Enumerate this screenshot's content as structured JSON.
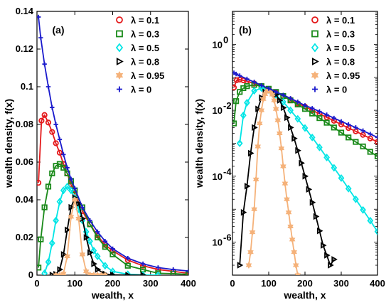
{
  "chart_data": [
    {
      "type": "line",
      "panel_label": "(a)",
      "xlabel": "wealth, x",
      "ylabel": "wealth density, f(x)",
      "xlim": [
        0,
        400
      ],
      "ylim": [
        0,
        0.14
      ],
      "yscale": "linear",
      "xticks": [
        "0",
        "100",
        "200",
        "300",
        "400"
      ],
      "yticks": [
        "0",
        "0.02",
        "0.04",
        "0.06",
        "0.08",
        "0.1",
        "0.12",
        "0.14"
      ],
      "legend_position": "top-right",
      "series": [
        {
          "name": "λ = 0.1",
          "color": "#e41a1c",
          "marker": "circle",
          "x": [
            4,
            12,
            20,
            30,
            40,
            50,
            60,
            70,
            80,
            90,
            100,
            120,
            140,
            160,
            180,
            200,
            240,
            280,
            320,
            360,
            400
          ],
          "y": [
            0.049,
            0.082,
            0.085,
            0.081,
            0.076,
            0.07,
            0.065,
            0.059,
            0.054,
            0.048,
            0.043,
            0.034,
            0.027,
            0.021,
            0.016,
            0.013,
            0.008,
            0.005,
            0.003,
            0.002,
            0.001
          ]
        },
        {
          "name": "λ = 0.3",
          "color": "#1a8a1a",
          "marker": "square",
          "x": [
            4,
            10,
            20,
            30,
            40,
            50,
            60,
            70,
            80,
            90,
            100,
            120,
            140,
            160,
            180,
            200,
            240,
            280,
            320,
            360,
            400
          ],
          "y": [
            0.004,
            0.019,
            0.036,
            0.047,
            0.054,
            0.058,
            0.059,
            0.057,
            0.054,
            0.05,
            0.045,
            0.036,
            0.027,
            0.02,
            0.015,
            0.011,
            0.005,
            0.003,
            0.001,
            0.0008,
            0.0004
          ]
        },
        {
          "name": "λ = 0.5",
          "color": "#00e5e5",
          "marker": "diamond",
          "x": [
            20,
            30,
            40,
            50,
            60,
            70,
            80,
            90,
            100,
            110,
            120,
            130,
            140,
            150,
            160,
            180,
            200,
            240,
            280,
            320
          ],
          "y": [
            0.001,
            0.007,
            0.017,
            0.029,
            0.039,
            0.045,
            0.047,
            0.045,
            0.041,
            0.035,
            0.029,
            0.023,
            0.018,
            0.013,
            0.01,
            0.005,
            0.002,
            0.0005,
            0.0001,
            2e-05
          ]
        },
        {
          "name": "λ = 0.8",
          "color": "#000000",
          "marker": "triangle-right",
          "x": [
            40,
            50,
            60,
            70,
            80,
            90,
            100,
            110,
            120,
            130,
            140,
            150,
            160,
            180,
            200,
            240,
            280
          ],
          "y": [
            5e-05,
            0.0005,
            0.003,
            0.011,
            0.024,
            0.036,
            0.041,
            0.038,
            0.03,
            0.02,
            0.012,
            0.006,
            0.003,
            0.0006,
            0.0001,
            1e-05,
            1e-06
          ]
        },
        {
          "name": "λ = 0.95",
          "color": "#f5b27a",
          "marker": "hexagram",
          "x": [
            50,
            60,
            70,
            80,
            90,
            100,
            110,
            120,
            130,
            140,
            150,
            160,
            170,
            180
          ],
          "y": [
            5e-07,
            1e-05,
            0.0008,
            0.01,
            0.031,
            0.04,
            0.03,
            0.011,
            0.002,
            0.0002,
            2e-05,
            3e-06,
            5e-07,
            1e-07
          ]
        },
        {
          "name": "λ = 0",
          "color": "#1a1acc",
          "marker": "plus",
          "x": [
            4,
            10,
            20,
            30,
            40,
            50,
            60,
            70,
            80,
            90,
            100,
            120,
            140,
            160,
            180,
            200,
            240,
            280,
            320,
            360,
            400
          ],
          "y": [
            0.137,
            0.126,
            0.112,
            0.1,
            0.089,
            0.08,
            0.072,
            0.064,
            0.057,
            0.051,
            0.046,
            0.036,
            0.029,
            0.023,
            0.018,
            0.014,
            0.009,
            0.006,
            0.004,
            0.003,
            0.0022
          ]
        }
      ]
    },
    {
      "type": "line",
      "panel_label": "(b)",
      "xlabel": "wealth, x",
      "ylabel": "wealth density, f(x)",
      "xlim": [
        0,
        400
      ],
      "ylim": [
        1e-07,
        10
      ],
      "yscale": "log",
      "xticks": [
        "0",
        "100",
        "200",
        "300",
        "400"
      ],
      "yticks": [
        {
          "v": 1,
          "base": "10",
          "exp": "0"
        },
        {
          "v": 0.01,
          "base": "10",
          "exp": "-2"
        },
        {
          "v": 0.0001,
          "base": "10",
          "exp": "-4"
        },
        {
          "v": 1e-06,
          "base": "10",
          "exp": "-6"
        }
      ],
      "legend_position": "top-right",
      "series": [
        {
          "name": "λ = 0.1",
          "color": "#e41a1c",
          "marker": "circle",
          "x": [
            4,
            12,
            20,
            30,
            40,
            60,
            80,
            100,
            120,
            140,
            160,
            180,
            200,
            220,
            240,
            260,
            280,
            300,
            320,
            340,
            360,
            380,
            400
          ],
          "y": [
            0.049,
            0.082,
            0.085,
            0.081,
            0.076,
            0.065,
            0.054,
            0.043,
            0.034,
            0.027,
            0.021,
            0.016,
            0.013,
            0.01,
            0.0078,
            0.0061,
            0.0048,
            0.0037,
            0.0029,
            0.0023,
            0.0018,
            0.0014,
            0.0011
          ]
        },
        {
          "name": "λ = 0.3",
          "color": "#1a8a1a",
          "marker": "square",
          "x": [
            4,
            10,
            20,
            30,
            40,
            60,
            80,
            100,
            120,
            140,
            160,
            180,
            200,
            220,
            240,
            260,
            280,
            300,
            320,
            340,
            360,
            380,
            400
          ],
          "y": [
            0.004,
            0.019,
            0.036,
            0.047,
            0.054,
            0.059,
            0.054,
            0.045,
            0.036,
            0.027,
            0.02,
            0.015,
            0.011,
            0.008,
            0.0058,
            0.0042,
            0.003,
            0.0021,
            0.0015,
            0.0011,
            0.0008,
            0.00055,
            0.0004
          ]
        },
        {
          "name": "λ = 0.5",
          "color": "#00e5e5",
          "marker": "diamond",
          "x": [
            20,
            30,
            40,
            60,
            80,
            100,
            120,
            140,
            160,
            180,
            200,
            220,
            240,
            260,
            280,
            300,
            320,
            340,
            360,
            380,
            400
          ],
          "y": [
            0.001,
            0.007,
            0.017,
            0.039,
            0.047,
            0.041,
            0.029,
            0.018,
            0.01,
            0.0055,
            0.0029,
            0.0015,
            0.00075,
            0.00037,
            0.00018,
            8.8e-05,
            4.2e-05,
            2e-05,
            9.5e-06,
            4.5e-06,
            2.1e-06
          ]
        },
        {
          "name": "λ = 0.8",
          "color": "#000000",
          "marker": "triangle-right",
          "x": [
            20,
            30,
            40,
            50,
            60,
            70,
            80,
            90,
            100,
            110,
            120,
            130,
            140,
            150,
            160,
            170,
            180,
            190,
            200,
            210,
            220,
            230,
            240,
            250,
            260,
            270,
            280
          ],
          "y": [
            2e-07,
            8e-06,
            5e-05,
            0.0005,
            0.003,
            0.011,
            0.024,
            0.036,
            0.041,
            0.038,
            0.03,
            0.02,
            0.012,
            0.006,
            0.003,
            0.0014,
            0.0006,
            0.00025,
            0.0001,
            4e-05,
            1.6e-05,
            6e-06,
            2.2e-06,
            8e-07,
            4e-07,
            2e-07,
            3e-07
          ]
        },
        {
          "name": "λ = 0.95",
          "color": "#f5b27a",
          "marker": "hexagram",
          "x": [
            45,
            50,
            55,
            60,
            65,
            70,
            75,
            80,
            85,
            90,
            95,
            100,
            105,
            110,
            115,
            120,
            125,
            130,
            135,
            140,
            145,
            150,
            155,
            160,
            165,
            170,
            175,
            180
          ],
          "y": [
            2e-07,
            5e-07,
            2e-06,
            1e-05,
            8e-05,
            0.0008,
            0.004,
            0.01,
            0.022,
            0.031,
            0.038,
            0.04,
            0.037,
            0.03,
            0.02,
            0.011,
            0.005,
            0.002,
            0.0007,
            0.0002,
            6e-05,
            2e-05,
            8e-06,
            3e-06,
            1.2e-06,
            5e-07,
            2e-07,
            1e-07
          ]
        },
        {
          "name": "λ = 0",
          "color": "#1a1acc",
          "marker": "plus",
          "x": [
            4,
            10,
            20,
            40,
            60,
            80,
            100,
            120,
            140,
            160,
            180,
            200,
            220,
            240,
            260,
            280,
            300,
            320,
            340,
            360,
            380,
            400
          ],
          "y": [
            0.137,
            0.126,
            0.112,
            0.089,
            0.072,
            0.057,
            0.046,
            0.036,
            0.029,
            0.023,
            0.018,
            0.014,
            0.0115,
            0.0092,
            0.0073,
            0.0058,
            0.0046,
            0.0037,
            0.003,
            0.0024,
            0.0019,
            0.0015
          ]
        }
      ]
    }
  ]
}
